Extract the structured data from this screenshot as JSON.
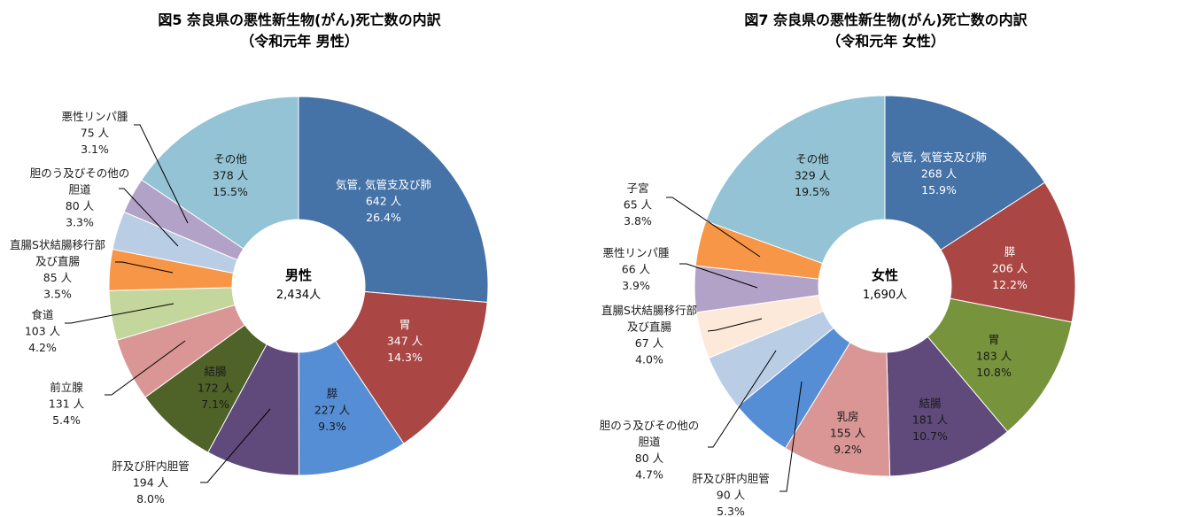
{
  "chart_data": [
    {
      "type": "pie",
      "donut": true,
      "title": [
        "図5  奈良県の悪性新生物(がん)死亡数の内訳",
        "（令和元年  男性）"
      ],
      "center_label": "男性",
      "center_total": "2,434人",
      "unit": "人",
      "start": "top",
      "direction": "clockwise",
      "slices": [
        {
          "name": [
            "気管, 気管支及び肺"
          ],
          "value": 642,
          "pct": "26.4%",
          "color": "#4572A7",
          "text_color": "#ffffff",
          "placement": "inside"
        },
        {
          "name": [
            "胃"
          ],
          "value": 347,
          "pct": "14.3%",
          "color": "#AA4643",
          "text_color": "#ffffff",
          "placement": "inside"
        },
        {
          "name": [
            "膵"
          ],
          "value": 227,
          "pct": "9.3%",
          "color": "#558ED5",
          "text_color": "#1a1a1a",
          "placement": "inside"
        },
        {
          "name": [
            "肝及び肝内胆管"
          ],
          "value": 194,
          "pct": "8.0%",
          "color": "#604A7B",
          "text_color": "#1a1a1a",
          "placement": "outside"
        },
        {
          "name": [
            "結腸"
          ],
          "value": 172,
          "pct": "7.1%",
          "color": "#4F6228",
          "text_color": "#1a1a1a",
          "placement": "inside"
        },
        {
          "name": [
            "前立腺"
          ],
          "value": 131,
          "pct": "5.4%",
          "color": "#D99694",
          "text_color": "#1a1a1a",
          "placement": "outside"
        },
        {
          "name": [
            "食道"
          ],
          "value": 103,
          "pct": "4.2%",
          "color": "#C3D69B",
          "text_color": "#1a1a1a",
          "placement": "outside"
        },
        {
          "name": [
            "直腸S状結腸移行部",
            "及び直腸"
          ],
          "value": 85,
          "pct": "3.5%",
          "color": "#F79646",
          "text_color": "#1a1a1a",
          "placement": "outside"
        },
        {
          "name": [
            "胆のう及びその他の",
            "胆道"
          ],
          "value": 80,
          "pct": "3.3%",
          "color": "#B9CDE5",
          "text_color": "#1a1a1a",
          "placement": "outside"
        },
        {
          "name": [
            "悪性リンパ腫"
          ],
          "value": 75,
          "pct": "3.1%",
          "color": "#B3A2C7",
          "text_color": "#1a1a1a",
          "placement": "outside"
        },
        {
          "name": [
            "その他"
          ],
          "value": 378,
          "pct": "15.5%",
          "color": "#93C3D4",
          "text_color": "#1a1a1a",
          "placement": "inside"
        }
      ]
    },
    {
      "type": "pie",
      "donut": true,
      "title": [
        "図7  奈良県の悪性新生物(がん)死亡数の内訳",
        "（令和元年  女性）"
      ],
      "center_label": "女性",
      "center_total": "1,690人",
      "unit": "人",
      "start": "top",
      "direction": "clockwise",
      "slices": [
        {
          "name": [
            "気管, 気管支及び肺"
          ],
          "value": 268,
          "pct": "15.9%",
          "color": "#4572A7",
          "text_color": "#ffffff",
          "placement": "inside"
        },
        {
          "name": [
            "膵"
          ],
          "value": 206,
          "pct": "12.2%",
          "color": "#AA4643",
          "text_color": "#ffffff",
          "placement": "inside"
        },
        {
          "name": [
            "胃"
          ],
          "value": 183,
          "pct": "10.8%",
          "color": "#77933C",
          "text_color": "#1a1a1a",
          "placement": "inside"
        },
        {
          "name": [
            "結腸"
          ],
          "value": 181,
          "pct": "10.7%",
          "color": "#604A7B",
          "text_color": "#1a1a1a",
          "placement": "inside"
        },
        {
          "name": [
            "乳房"
          ],
          "value": 155,
          "pct": "9.2%",
          "color": "#D99694",
          "text_color": "#1a1a1a",
          "placement": "inside"
        },
        {
          "name": [
            "肝及び肝内胆管"
          ],
          "value": 90,
          "pct": "5.3%",
          "color": "#558ED5",
          "text_color": "#1a1a1a",
          "placement": "outside"
        },
        {
          "name": [
            "胆のう及びその他の",
            "胆道"
          ],
          "value": 80,
          "pct": "4.7%",
          "color": "#B9CDE5",
          "text_color": "#1a1a1a",
          "placement": "outside"
        },
        {
          "name": [
            "直腸S状結腸移行部",
            "及び直腸"
          ],
          "value": 67,
          "pct": "4.0%",
          "color": "#FDE9D9",
          "text_color": "#1a1a1a",
          "placement": "outside"
        },
        {
          "name": [
            "悪性リンパ腫"
          ],
          "value": 66,
          "pct": "3.9%",
          "color": "#B3A2C7",
          "text_color": "#1a1a1a",
          "placement": "outside"
        },
        {
          "name": [
            "子宮"
          ],
          "value": 65,
          "pct": "3.8%",
          "color": "#F79646",
          "text_color": "#1a1a1a",
          "placement": "outside"
        },
        {
          "name": [
            "その他"
          ],
          "value": 329,
          "pct": "19.5%",
          "color": "#93C3D4",
          "text_color": "#1a1a1a",
          "placement": "inside"
        }
      ]
    }
  ]
}
